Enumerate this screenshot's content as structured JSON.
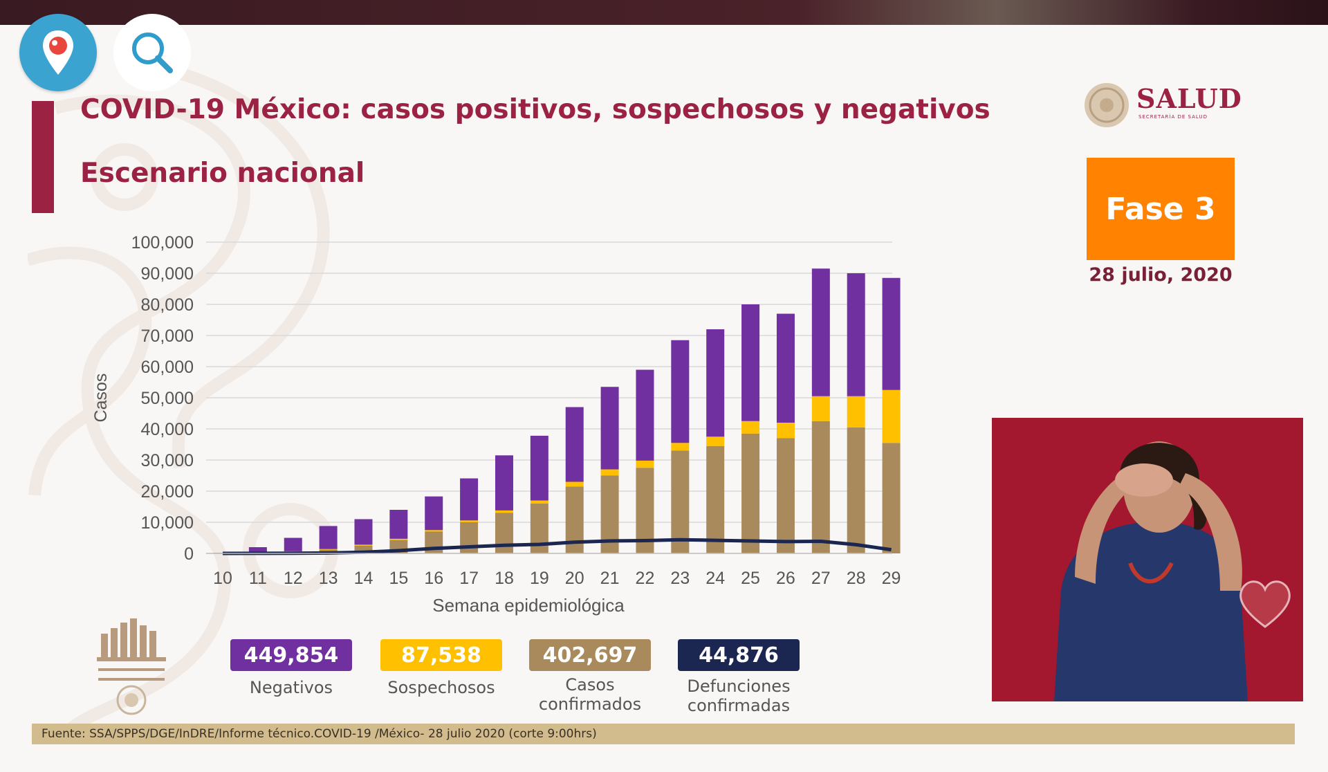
{
  "title": "COVID-19 México: casos positivos, sospechosos y negativos",
  "subtitle": "Escenario nacional",
  "logo": {
    "name": "SALUD",
    "sub": "SECRETARÍA DE SALUD"
  },
  "phase": "Fase 3",
  "date": "28 julio, 2020",
  "colors": {
    "negativos": "#7030a0",
    "sospechosos": "#ffc000",
    "confirmados": "#a98a5d",
    "defunciones": "#1b2651",
    "accent": "#9b2242",
    "fase": "#ff8200"
  },
  "stats": [
    {
      "value": "449,854",
      "label": "Negativos",
      "label2": "",
      "color": "#7030a0"
    },
    {
      "value": "87,538",
      "label": "Sospechosos",
      "label2": "",
      "color": "#ffc000"
    },
    {
      "value": "402,697",
      "label": "Casos",
      "label2": "confirmados",
      "color": "#a98a5d"
    },
    {
      "value": "44,876",
      "label": "Defunciones",
      "label2": "confirmadas",
      "color": "#1b2651"
    }
  ],
  "footer": "Fuente: SSA/SPPS/DGE/InDRE/Informe técnico.COVID-19 /México- 28 julio 2020 (corte 9:00hrs)",
  "chart_data": {
    "type": "bar",
    "stacked": true,
    "title": "",
    "xlabel": "Semana epidemiológica",
    "ylabel": "Casos",
    "ylim": [
      0,
      100000
    ],
    "yticks": [
      "0",
      "10,000",
      "20,000",
      "30,000",
      "40,000",
      "50,000",
      "60,000",
      "70,000",
      "80,000",
      "90,000",
      "100,000"
    ],
    "categories": [
      "10",
      "11",
      "12",
      "13",
      "14",
      "15",
      "16",
      "17",
      "18",
      "19",
      "20",
      "21",
      "22",
      "23",
      "24",
      "25",
      "26",
      "27",
      "28",
      "29"
    ],
    "series": [
      {
        "name": "Casos confirmados",
        "type": "bar",
        "color": "#a98a5d",
        "values": [
          50,
          300,
          600,
          1200,
          2500,
          4300,
          7000,
          10000,
          13000,
          16000,
          21500,
          25000,
          27500,
          33000,
          34500,
          38500,
          37000,
          42500,
          40500,
          35500
        ]
      },
      {
        "name": "Sospechosos",
        "type": "bar",
        "color": "#ffc000",
        "values": [
          10,
          50,
          100,
          200,
          300,
          400,
          500,
          600,
          800,
          1000,
          1500,
          2000,
          2300,
          2500,
          3000,
          4000,
          5000,
          8000,
          10000,
          17000
        ]
      },
      {
        "name": "Negativos",
        "type": "bar",
        "color": "#7030a0",
        "values": [
          100,
          1650,
          4300,
          7400,
          8200,
          9300,
          10800,
          13500,
          17700,
          20800,
          24000,
          26500,
          29200,
          33000,
          34500,
          37500,
          35000,
          41000,
          39500,
          36000
        ]
      },
      {
        "name": "Defunciones confirmadas",
        "type": "line",
        "color": "#1b2651",
        "values": [
          0,
          20,
          60,
          150,
          400,
          900,
          1600,
          2100,
          2600,
          2900,
          3600,
          4000,
          4100,
          4400,
          4200,
          4000,
          3800,
          3900,
          2800,
          1200
        ]
      }
    ]
  }
}
